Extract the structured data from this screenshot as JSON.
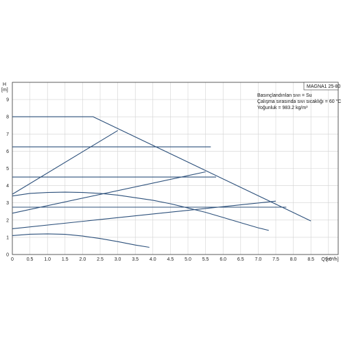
{
  "chart_data": {
    "type": "line",
    "title": "MAGNA1 25-80",
    "ylabel": "H",
    "yunit": "[m]",
    "xlabel": "Q [m³/h]",
    "xlim": [
      0,
      9.5
    ],
    "ylim": [
      0,
      10
    ],
    "xticks": [
      "0",
      "0.5",
      "1.0",
      "1.5",
      "2.0",
      "2.5",
      "3.0",
      "3.5",
      "4.0",
      "4.5",
      "5.0",
      "5.5",
      "6.0",
      "6.5",
      "7.0",
      "7.5",
      "8.0",
      "8.5",
      "9.0",
      "Q [m³/h]"
    ],
    "yticks": [
      "0",
      "1",
      "2",
      "3",
      "4",
      "5",
      "6",
      "7",
      "8",
      "9"
    ],
    "grid": true,
    "notes": [
      "Basınçlandırılan sıvı = Su",
      "Çalışma sırasında sıvı sıcaklığı = 60 °C",
      "Yoğunluk = 983.2 kg/m³"
    ],
    "color": "#2b4f7a",
    "series": [
      {
        "x": [
          0,
          2.3,
          8.5
        ],
        "y": [
          8.0,
          8.0,
          1.95
        ]
      },
      {
        "x": [
          0,
          5.65
        ],
        "y": [
          6.25,
          6.25
        ]
      },
      {
        "x": [
          0,
          5.8
        ],
        "y": [
          4.5,
          4.5
        ]
      },
      {
        "x": [
          0,
          7.8
        ],
        "y": [
          2.75,
          2.75
        ]
      },
      {
        "x": [
          0,
          3.0
        ],
        "y": [
          3.5,
          7.2
        ]
      },
      {
        "x": [
          0,
          5.5
        ],
        "y": [
          2.4,
          4.8
        ]
      },
      {
        "x": [
          0,
          7.5
        ],
        "y": [
          1.5,
          3.1
        ]
      },
      {
        "x": [
          0,
          0.5,
          1.0,
          1.5,
          2.0,
          2.5,
          3.0,
          3.5,
          4.0,
          4.5,
          5.0,
          5.5,
          6.0,
          6.5,
          7.0,
          7.3
        ],
        "y": [
          3.4,
          3.55,
          3.6,
          3.62,
          3.6,
          3.55,
          3.45,
          3.3,
          3.15,
          2.95,
          2.7,
          2.45,
          2.15,
          1.85,
          1.55,
          1.4
        ]
      },
      {
        "x": [
          0,
          0.5,
          1.0,
          1.5,
          2.0,
          2.5,
          3.0,
          3.5,
          3.9
        ],
        "y": [
          1.1,
          1.18,
          1.2,
          1.17,
          1.07,
          0.93,
          0.75,
          0.55,
          0.42
        ]
      }
    ]
  }
}
